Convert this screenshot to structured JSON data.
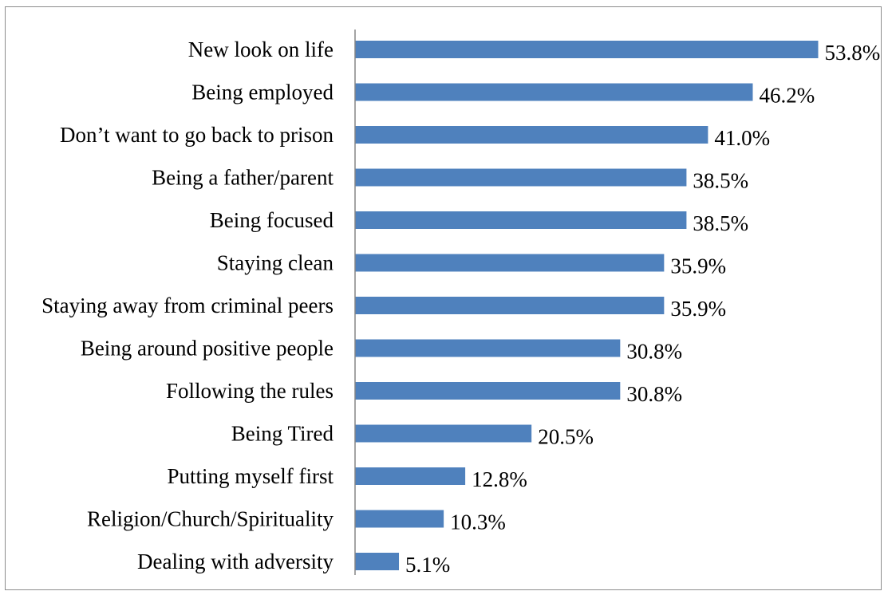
{
  "chart_data": {
    "type": "bar",
    "orientation": "horizontal",
    "categories": [
      "New look on life",
      "Being employed",
      "Don’t want to go back to prison",
      "Being a father/parent",
      "Being focused",
      "Staying clean",
      "Staying away from criminal peers",
      "Being around positive people",
      "Following the rules",
      "Being Tired",
      "Putting myself first",
      "Religion/Church/Spirituality",
      "Dealing with adversity"
    ],
    "values": [
      53.8,
      46.2,
      41.0,
      38.5,
      38.5,
      35.9,
      35.9,
      30.8,
      30.8,
      20.5,
      12.8,
      10.3,
      5.1
    ],
    "value_labels": [
      "53.8%",
      "46.2%",
      "41.0%",
      "38.5%",
      "38.5%",
      "35.9%",
      "35.9%",
      "30.8%",
      "30.8%",
      "20.5%",
      "12.8%",
      "10.3%",
      "5.1%"
    ],
    "unit": "%",
    "title": "",
    "xlabel": "",
    "ylabel": "",
    "xlim": [
      0,
      60
    ],
    "grid": false,
    "legend": "none",
    "bar_color": "#4f81bd",
    "axis_color": "#868686"
  }
}
